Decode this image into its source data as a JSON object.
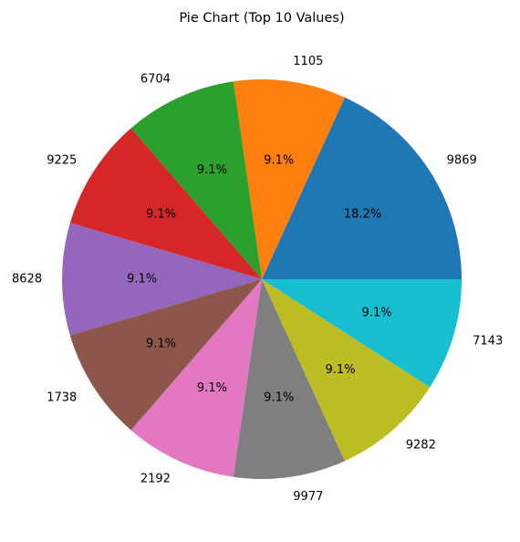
{
  "chart_data": {
    "type": "pie",
    "title": "Pie Chart (Top 10 Values)",
    "labels": [
      "9869",
      "1105",
      "6704",
      "9225",
      "8628",
      "1738",
      "2192",
      "9977",
      "9282",
      "7143"
    ],
    "values": [
      18.2,
      9.1,
      9.1,
      9.1,
      9.1,
      9.1,
      9.1,
      9.1,
      9.1,
      9.1
    ],
    "pct_labels": [
      "18.2%",
      "9.1%",
      "9.1%",
      "9.1%",
      "9.1%",
      "9.1%",
      "9.1%",
      "9.1%",
      "9.1%",
      "9.1%"
    ],
    "colors": [
      "#1f77b4",
      "#ff7f0e",
      "#2ca02c",
      "#d62728",
      "#9467bd",
      "#8c564b",
      "#e377c2",
      "#7f7f7f",
      "#bcbd22",
      "#17becf"
    ],
    "start_angle_deg": 0,
    "direction": "counterclockwise"
  }
}
